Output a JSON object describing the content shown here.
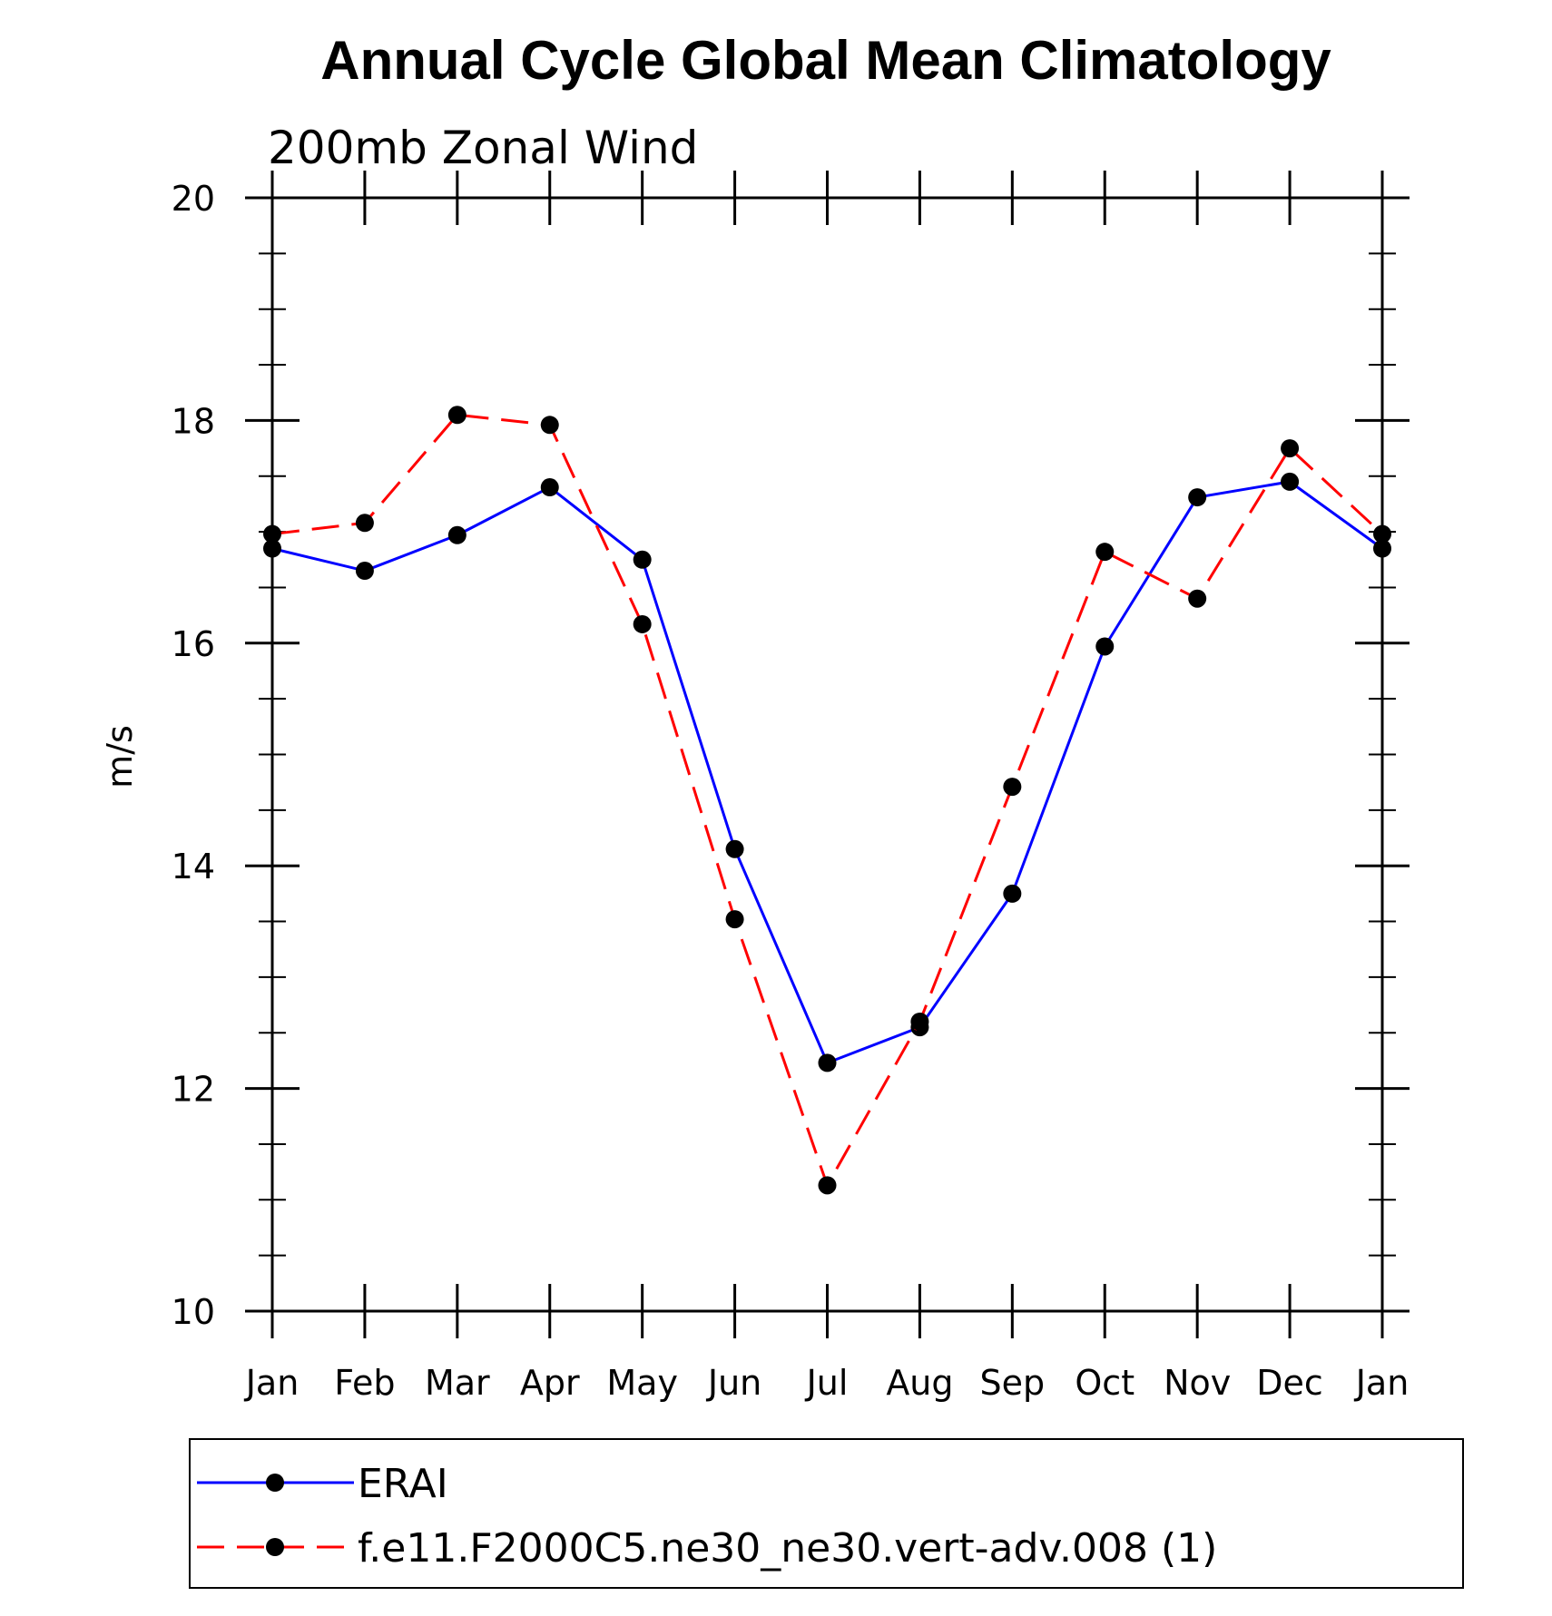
{
  "chart_data": {
    "type": "line",
    "title": "Annual Cycle Global Mean Climatology",
    "subtitle": "200mb Zonal Wind",
    "ylabel": "m/s",
    "xlabel": "",
    "categories": [
      "Jan",
      "Feb",
      "Mar",
      "Apr",
      "May",
      "Jun",
      "Jul",
      "Aug",
      "Sep",
      "Oct",
      "Nov",
      "Dec",
      "Jan"
    ],
    "ylim": [
      10,
      20
    ],
    "yticks": [
      10,
      12,
      14,
      16,
      18,
      20
    ],
    "series": [
      {
        "name": "ERAI",
        "color": "#0000ff",
        "style": "solid",
        "marker": "circle",
        "values": [
          16.85,
          16.65,
          16.97,
          17.4,
          16.75,
          14.15,
          12.23,
          12.55,
          13.75,
          15.97,
          17.31,
          17.45,
          16.85
        ]
      },
      {
        "name": "f.e11.F2000C5.ne30_ne30.vert-adv.008 (1)",
        "color": "#ff0000",
        "style": "dashed",
        "marker": "circle",
        "values": [
          16.98,
          17.08,
          18.05,
          17.96,
          16.17,
          13.52,
          11.13,
          12.6,
          14.71,
          16.82,
          16.4,
          17.75,
          16.98
        ]
      }
    ],
    "legend": "below",
    "grid": false
  }
}
